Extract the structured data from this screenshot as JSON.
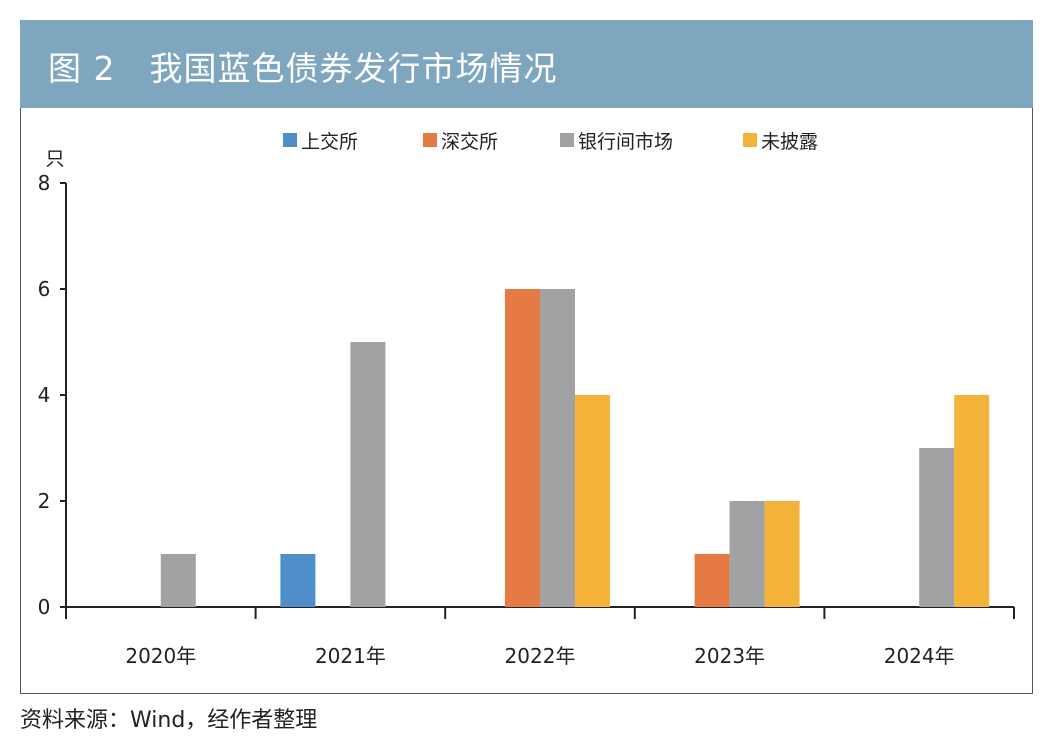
{
  "header": {
    "title": "图 2　我国蓝色债券发行市场情况"
  },
  "colors": {
    "header_bg": "#7fa6bf",
    "axis": "#222222"
  },
  "chart_data": {
    "type": "bar",
    "title": "图 2　我国蓝色债券发行市场情况",
    "ylabel": "只",
    "xlabel": "",
    "ylim": [
      0,
      8
    ],
    "yticks": [
      0,
      2,
      4,
      6,
      8
    ],
    "categories": [
      "2020年",
      "2021年",
      "2022年",
      "2023年",
      "2024年"
    ],
    "legend_position": "top",
    "grid": false,
    "series": [
      {
        "name": "上交所",
        "color": "#4f8fc9",
        "values": [
          0,
          1,
          0,
          0,
          0
        ]
      },
      {
        "name": "深交所",
        "color": "#e57a45",
        "values": [
          0,
          0,
          6,
          1,
          0
        ]
      },
      {
        "name": "银行间市场",
        "color": "#a0a2a4",
        "values": [
          1,
          5,
          6,
          2,
          3
        ]
      },
      {
        "name": "未披露",
        "color": "#f4b43a",
        "values": [
          0,
          0,
          4,
          2,
          4
        ]
      }
    ]
  },
  "source": "资料来源：Wind，经作者整理"
}
